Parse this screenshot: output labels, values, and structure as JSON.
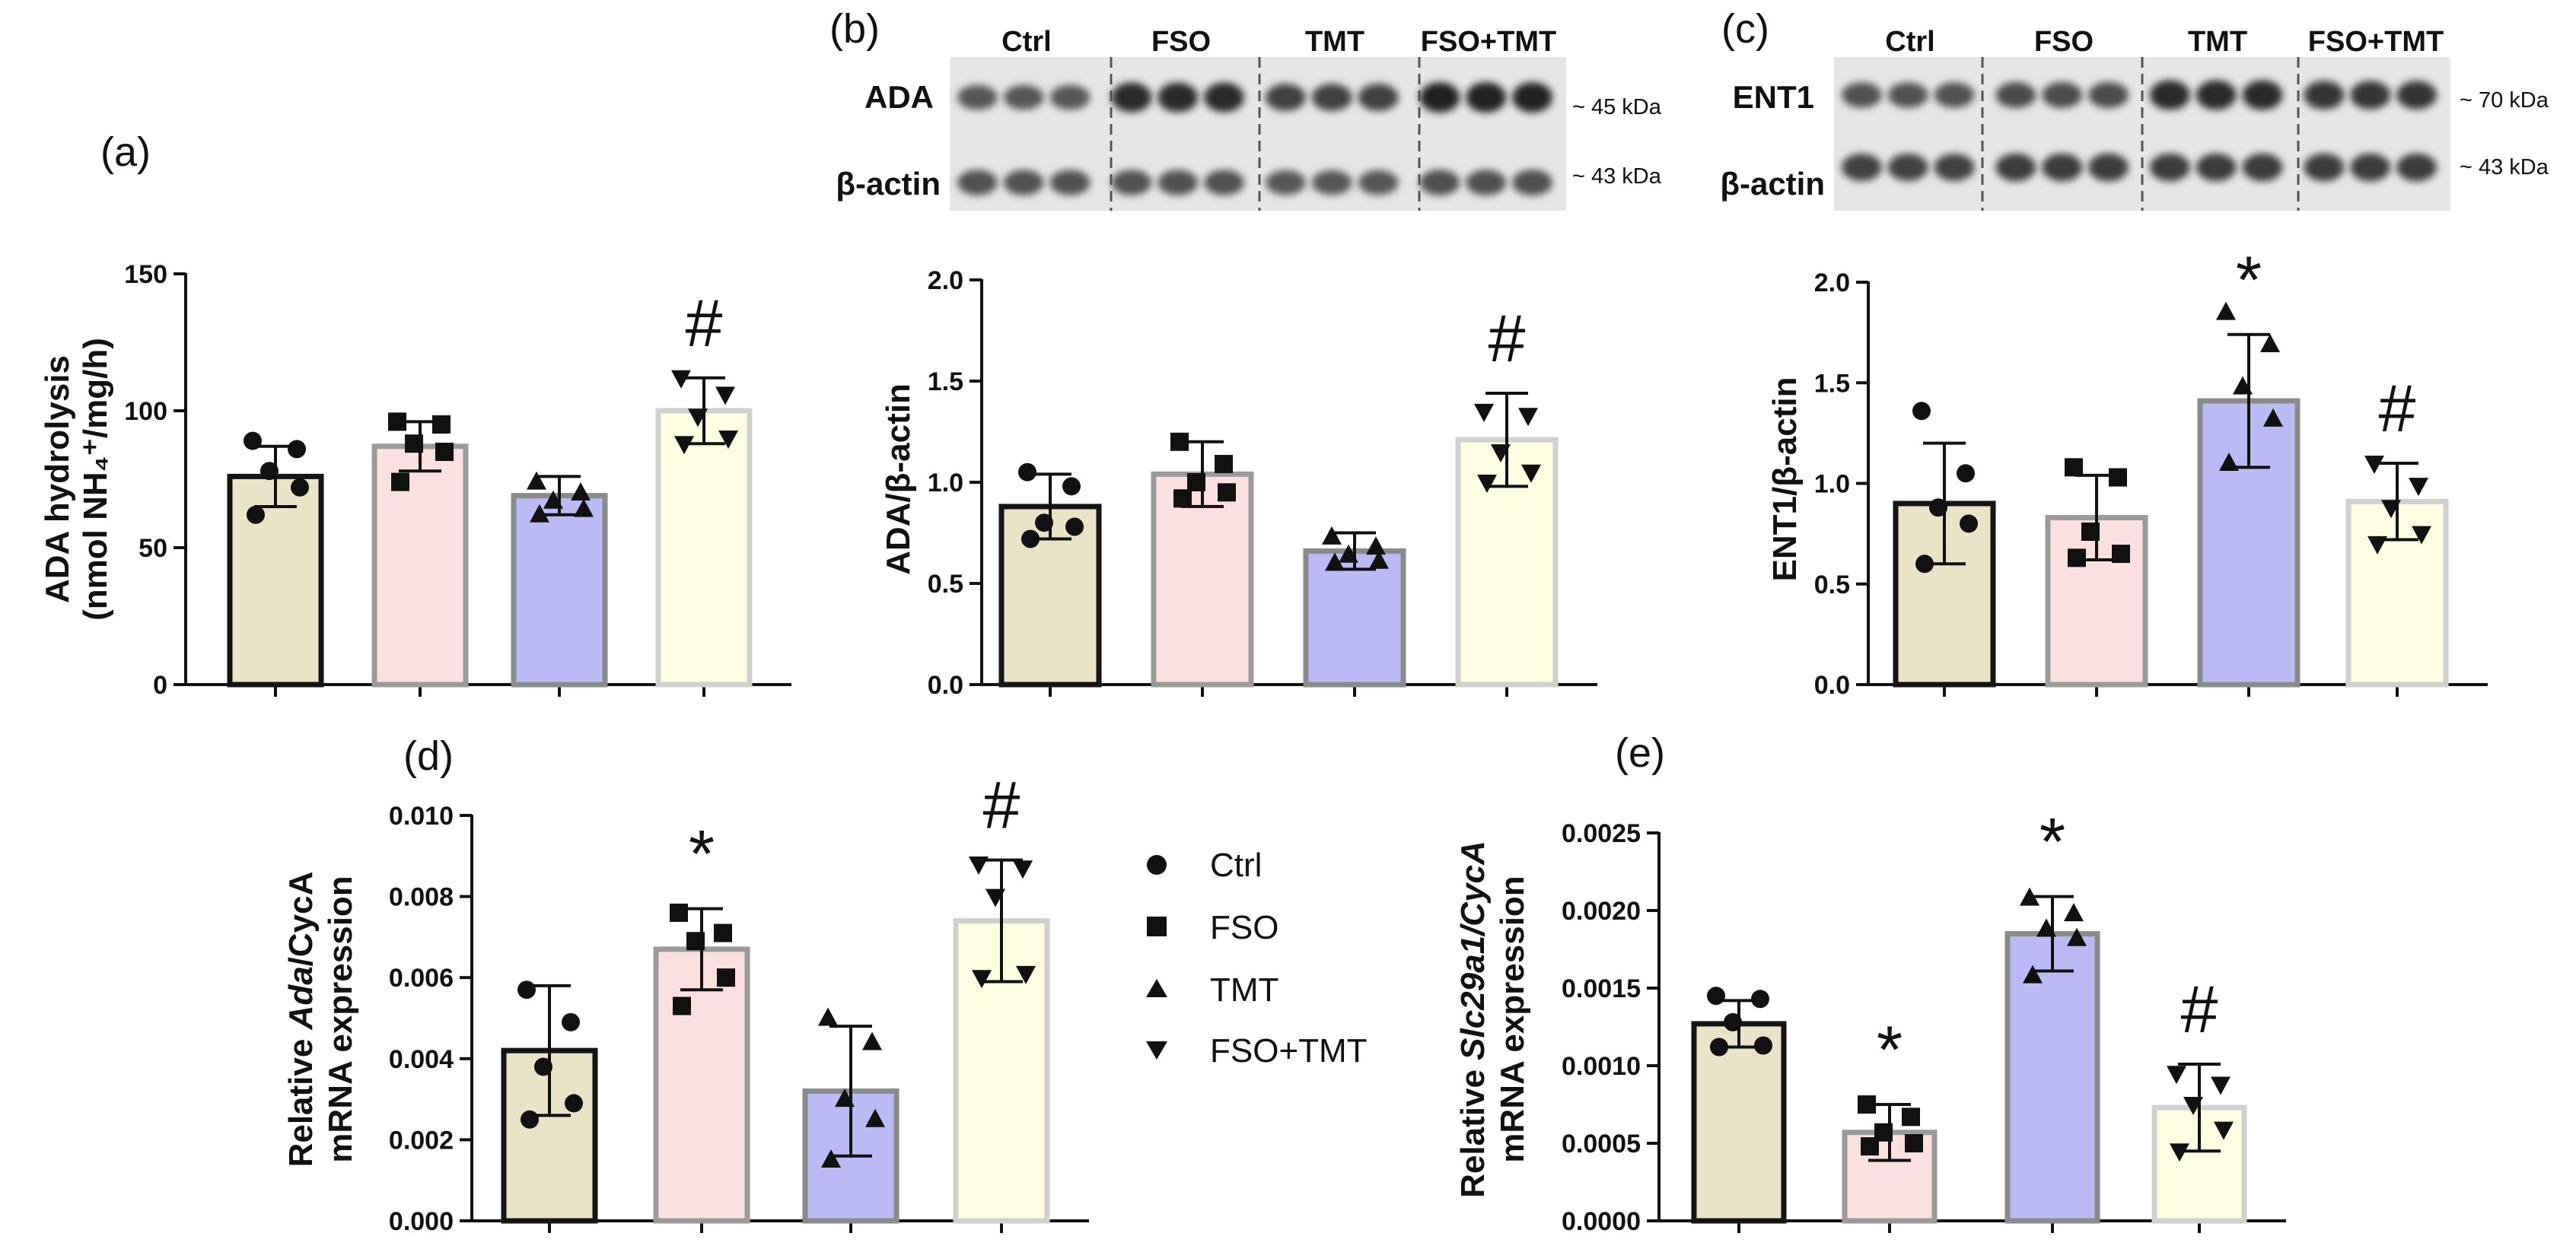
{
  "palette": {
    "ctrl": "#e9e3c8",
    "fso": "#fbe0e1",
    "tmt": "#bcbaf4",
    "fsotmt": "#fdfee1",
    "ctrl_edge": "#151515",
    "fso_edge": "#9b9b9b",
    "tmt_edge": "#8a8a8a",
    "fsotmt_edge": "#d0d0d0"
  },
  "legend": {
    "items": [
      {
        "label": "Ctrl",
        "marker": "circle"
      },
      {
        "label": "FSO",
        "marker": "square"
      },
      {
        "label": "TMT",
        "marker": "triangle-up"
      },
      {
        "label": "FSO+TMT",
        "marker": "triangle-down"
      }
    ]
  },
  "blots": {
    "b": {
      "groups": [
        "Ctrl",
        "FSO",
        "TMT",
        "FSO+TMT"
      ],
      "rows": [
        {
          "label": "ADA",
          "kda": "~ 45 kDa",
          "intensity": [
            0.55,
            0.95,
            0.75,
            1.0
          ]
        },
        {
          "label": "β-actin",
          "kda": "~ 43 kDa",
          "intensity": [
            0.6,
            0.6,
            0.55,
            0.62
          ]
        }
      ]
    },
    "c": {
      "groups": [
        "Ctrl",
        "FSO",
        "TMT",
        "FSO+TMT"
      ],
      "rows": [
        {
          "label": "ENT1",
          "kda": "~ 70 kDa",
          "intensity": [
            0.6,
            0.65,
            0.95,
            0.85
          ]
        },
        {
          "label": "β-actin",
          "kda": "~ 43 kDa",
          "intensity": [
            0.75,
            0.8,
            0.8,
            0.8
          ]
        }
      ]
    }
  },
  "chart_data": [
    {
      "panel": "(a)",
      "type": "bar",
      "categories": [
        "Ctrl",
        "FSO",
        "TMT",
        "FSO+TMT"
      ],
      "values": [
        76,
        87,
        69,
        100
      ],
      "sd": [
        11,
        9,
        7,
        12
      ],
      "points": [
        [
          89,
          86,
          78,
          72,
          62
        ],
        [
          96,
          95,
          88,
          85,
          74
        ],
        [
          74,
          70,
          67,
          64,
          62
        ],
        [
          112,
          106,
          98,
          90,
          88
        ]
      ],
      "ylabel_lines": [
        "ADA hydrolysis",
        "(nmol NH₄⁺/mg/h)"
      ],
      "ylim": [
        0,
        150
      ],
      "yticks": [
        "0",
        "50",
        "100",
        "150"
      ],
      "significance": [
        "",
        "",
        "",
        "#"
      ]
    },
    {
      "panel": "(b)",
      "type": "bar",
      "categories": [
        "Ctrl",
        "FSO",
        "TMT",
        "FSO+TMT"
      ],
      "values": [
        0.88,
        1.04,
        0.66,
        1.21
      ],
      "sd": [
        0.16,
        0.16,
        0.09,
        0.23
      ],
      "points": [
        [
          1.05,
          0.98,
          0.8,
          0.78,
          0.72
        ],
        [
          1.2,
          1.09,
          1.0,
          0.95,
          0.92
        ],
        [
          0.73,
          0.68,
          0.64,
          0.61,
          0.6
        ],
        [
          1.35,
          1.33,
          1.15,
          1.05,
          1.0
        ]
      ],
      "ylabel_lines": [
        "ADA/β-actin"
      ],
      "ylim": [
        0,
        2.0
      ],
      "yticks": [
        "0.0",
        "0.5",
        "1.0",
        "1.5",
        "2.0"
      ],
      "significance": [
        "",
        "",
        "",
        "#"
      ]
    },
    {
      "panel": "(c)",
      "type": "bar",
      "categories": [
        "Ctrl",
        "FSO",
        "TMT",
        "FSO+TMT"
      ],
      "values": [
        0.9,
        0.83,
        1.41,
        0.91
      ],
      "sd": [
        0.3,
        0.21,
        0.33,
        0.19
      ],
      "points": [
        [
          1.36,
          1.05,
          0.88,
          0.8,
          0.6
        ],
        [
          1.08,
          1.03,
          0.76,
          0.65,
          0.63
        ],
        [
          1.85,
          1.69,
          1.48,
          1.32,
          1.1
        ],
        [
          1.1,
          0.99,
          0.88,
          0.75,
          0.7
        ]
      ],
      "ylabel_lines": [
        "ENT1/β-actin"
      ],
      "ylim": [
        0,
        2.0
      ],
      "yticks": [
        "0.0",
        "0.5",
        "1.0",
        "1.5",
        "2.0"
      ],
      "significance": [
        "",
        "",
        "*",
        "#"
      ]
    },
    {
      "panel": "(d)",
      "type": "bar",
      "categories": [
        "Ctrl",
        "FSO",
        "TMT",
        "FSO+TMT"
      ],
      "values": [
        0.0042,
        0.0067,
        0.0032,
        0.0074
      ],
      "sd": [
        0.0016,
        0.001,
        0.0016,
        0.0015
      ],
      "points": [
        [
          0.0057,
          0.0049,
          0.0038,
          0.0029,
          0.0025
        ],
        [
          0.0076,
          0.0071,
          0.0069,
          0.006,
          0.0053
        ],
        [
          0.005,
          0.0044,
          0.003,
          0.0025,
          0.0015
        ],
        [
          0.0088,
          0.0087,
          0.008,
          0.0061,
          0.006
        ]
      ],
      "ylabel_lines": [
        "Relative Ada/CycA",
        "mRNA expression"
      ],
      "ylabel_italic": [
        "Ada"
      ],
      "ylim": [
        0,
        0.01
      ],
      "yticks": [
        "0.000",
        "0.002",
        "0.004",
        "0.006",
        "0.008",
        "0.010"
      ],
      "significance": [
        "",
        "*",
        "",
        "#"
      ]
    },
    {
      "panel": "(e)",
      "type": "bar",
      "categories": [
        "Ctrl",
        "FSO",
        "TMT",
        "FSO+TMT"
      ],
      "values": [
        0.00127,
        0.00057,
        0.00185,
        0.00073
      ],
      "sd": [
        0.00015,
        0.00018,
        0.00024,
        0.00028
      ],
      "points": [
        [
          0.00145,
          0.00143,
          0.00128,
          0.00113,
          0.00112
        ],
        [
          0.00075,
          0.00067,
          0.00057,
          0.0005,
          0.00048
        ],
        [
          0.00208,
          0.00198,
          0.00188,
          0.00182,
          0.00158
        ],
        [
          0.00095,
          0.00088,
          0.00075,
          0.00059,
          0.00045
        ]
      ],
      "ylabel_lines": [
        "Relative Slc29a1/CycA",
        "mRNA expression"
      ],
      "ylabel_italic": [
        "Slc29a1/CycA"
      ],
      "ylim": [
        0,
        0.0025
      ],
      "yticks": [
        "0.0000",
        "0.0005",
        "0.0010",
        "0.0015",
        "0.0020",
        "0.0025"
      ],
      "significance": [
        "",
        "*",
        "*",
        "#"
      ]
    }
  ]
}
